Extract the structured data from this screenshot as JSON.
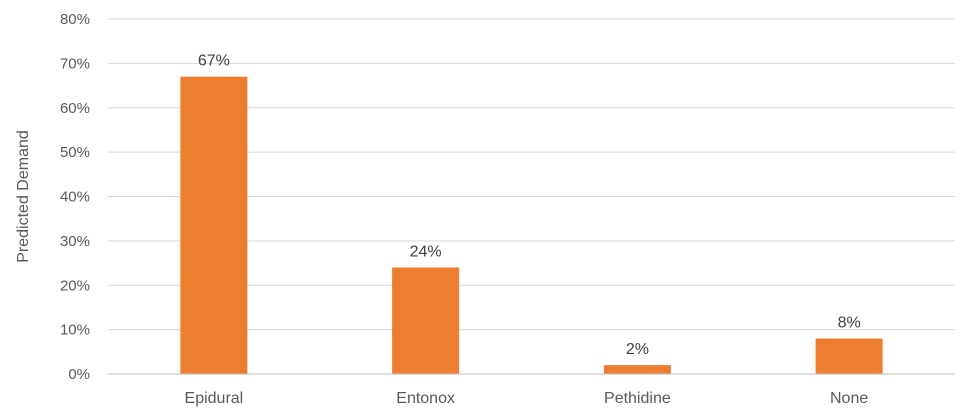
{
  "chart_data": {
    "type": "bar",
    "title": "",
    "xlabel": "",
    "ylabel": "Predicted Demand",
    "categories": [
      "Epidural",
      "Entonox",
      "Pethidine",
      "None"
    ],
    "values": [
      67,
      24,
      2,
      8
    ],
    "data_labels": [
      "67%",
      "24%",
      "2%",
      "8%"
    ],
    "y_ticks": [
      0,
      10,
      20,
      30,
      40,
      50,
      60,
      70,
      80
    ],
    "y_tick_labels": [
      "0%",
      "10%",
      "20%",
      "30%",
      "40%",
      "50%",
      "60%",
      "70%",
      "80%"
    ],
    "ylim": [
      0,
      80
    ],
    "grid": true,
    "legend": "none",
    "bar_color": "#ed7d31"
  }
}
